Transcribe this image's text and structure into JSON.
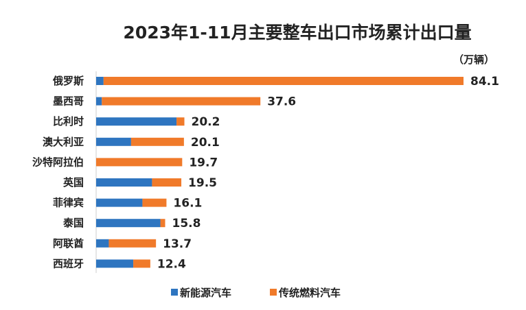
{
  "chart_data": {
    "type": "bar",
    "orientation": "horizontal",
    "stacked": true,
    "title": "2023年1-11月主要整车出口市场累计出口量",
    "unit": "（万辆）",
    "categories": [
      "俄罗斯",
      "墨西哥",
      "比利时",
      "澳大利亚",
      "沙特阿拉伯",
      "英国",
      "菲律宾",
      "泰国",
      "阿联酋",
      "西班牙"
    ],
    "totals": [
      84.1,
      37.6,
      20.2,
      20.1,
      19.7,
      19.5,
      16.1,
      15.8,
      13.7,
      12.4
    ],
    "total_labels": [
      "84.1",
      "37.6",
      "20.2",
      "20.1",
      "19.7",
      "19.5",
      "16.1",
      "15.8",
      "13.7",
      "12.4"
    ],
    "series": [
      {
        "name": "新能源汽车",
        "color": "#2e75c0",
        "values": [
          1.7,
          1.3,
          18.4,
          8.0,
          0,
          12.8,
          10.6,
          14.7,
          2.9,
          8.5
        ]
      },
      {
        "name": "传统燃料汽车",
        "color": "#f07a2a",
        "values": [
          82.4,
          36.3,
          1.8,
          12.1,
          19.7,
          6.7,
          5.5,
          1.1,
          10.8,
          3.9
        ]
      }
    ],
    "xlim": [
      0,
      84.1
    ],
    "grid": false,
    "legend": "bottom"
  }
}
